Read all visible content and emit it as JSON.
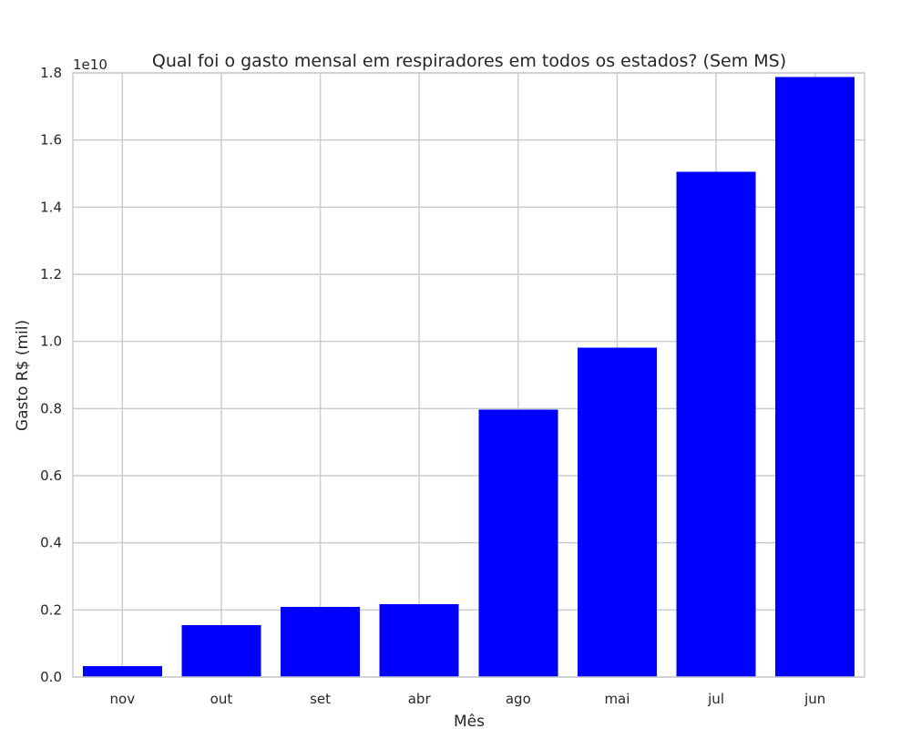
{
  "chart_data": {
    "type": "bar",
    "title": "Qual foi o gasto mensal em respiradores em todos os estados? (Sem MS)",
    "xlabel": "Mês",
    "ylabel": "Gasto R$ (mil)",
    "y_multiplier_label": "1e10",
    "categories": [
      "nov",
      "out",
      "set",
      "abr",
      "ago",
      "mai",
      "jul",
      "jun"
    ],
    "values": [
      0.032,
      0.155,
      0.209,
      0.217,
      0.797,
      0.982,
      1.506,
      1.788
    ],
    "value_scale": 10000000000.0,
    "ylim": [
      0.0,
      1.8
    ],
    "yticks": [
      "0.0",
      "0.2",
      "0.4",
      "0.6",
      "0.8",
      "1.0",
      "1.2",
      "1.4",
      "1.6",
      "1.8"
    ],
    "grid": true,
    "bar_color": "#0000ff"
  }
}
